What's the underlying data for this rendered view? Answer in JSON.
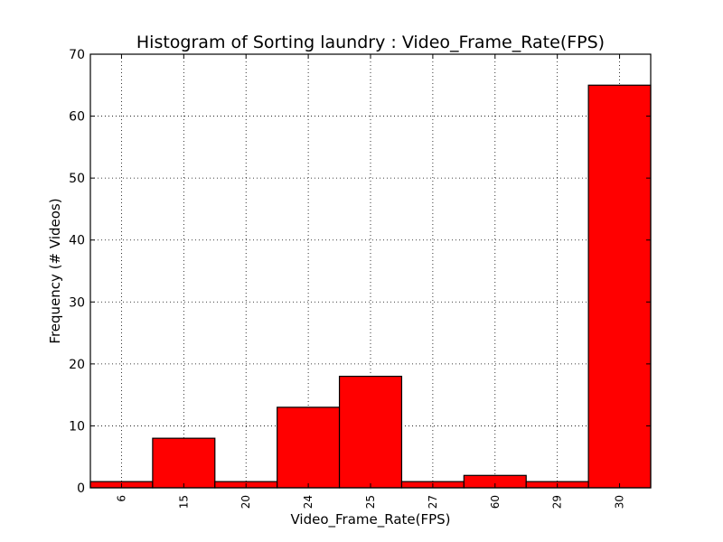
{
  "chart_data": {
    "type": "bar",
    "title": "Histogram of Sorting laundry : Video_Frame_Rate(FPS)",
    "xlabel": "Video_Frame_Rate(FPS)",
    "ylabel": "Frequency (# Videos)",
    "categories": [
      "6",
      "15",
      "20",
      "24",
      "25",
      "27",
      "60",
      "29",
      "30"
    ],
    "values": [
      1,
      8,
      1,
      13,
      18,
      1,
      2,
      1,
      65
    ],
    "ylim": [
      0,
      70
    ],
    "yticks": [
      "0",
      "10",
      "20",
      "30",
      "40",
      "50",
      "60",
      "70"
    ],
    "grid": true,
    "bar_color": "#ff0000",
    "edge_color": "#000000"
  }
}
